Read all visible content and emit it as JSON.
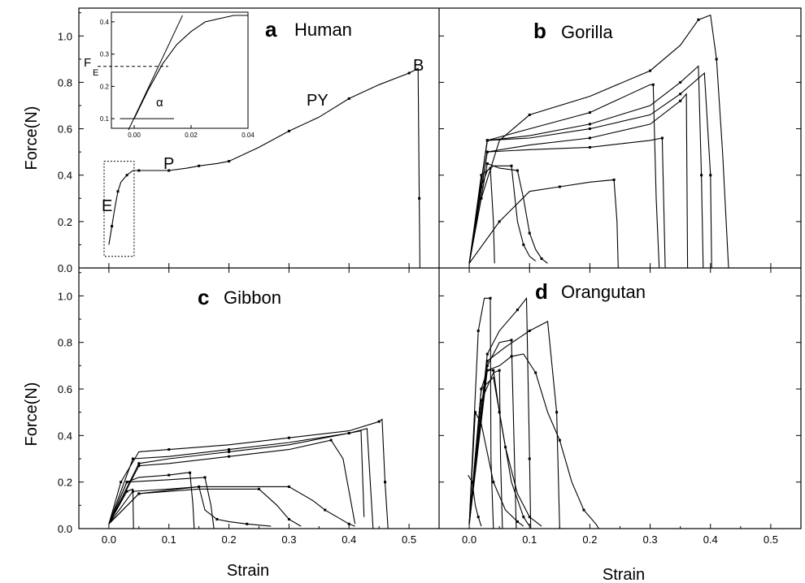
{
  "figure": {
    "ylabel": "Force(N)",
    "xlabel": "Strain",
    "x_ticks": [
      "0.0",
      "0.1",
      "0.2",
      "0.3",
      "0.4",
      "0.5"
    ],
    "y_ticks": [
      "0.0",
      "0.2",
      "0.4",
      "0.6",
      "0.8",
      "1.0"
    ]
  },
  "chart_data": [
    {
      "type": "line",
      "panel": "a",
      "title": "Human",
      "xlabel": "",
      "ylabel": "Force(N)",
      "xlim": [
        -0.05,
        0.55
      ],
      "ylim": [
        0,
        1.12
      ],
      "annotations": [
        "E",
        "P",
        "PY",
        "B"
      ],
      "series": [
        {
          "x": [
            0.0,
            0.005,
            0.01,
            0.015,
            0.02,
            0.03,
            0.04,
            0.05,
            0.08,
            0.1,
            0.13,
            0.15,
            0.18,
            0.2,
            0.25,
            0.3,
            0.35,
            0.4,
            0.45,
            0.5,
            0.515,
            0.517,
            0.518
          ],
          "y": [
            0.1,
            0.18,
            0.26,
            0.33,
            0.37,
            0.4,
            0.42,
            0.42,
            0.42,
            0.42,
            0.43,
            0.44,
            0.45,
            0.46,
            0.52,
            0.59,
            0.65,
            0.73,
            0.79,
            0.84,
            0.86,
            0.3,
            0.0
          ]
        }
      ],
      "inset": {
        "x_ticks": [
          "0.00",
          "0.02",
          "0.04"
        ],
        "y_ticks": [
          "0.1",
          "0.2",
          "0.3",
          "0.4"
        ],
        "annotations": [
          "F",
          "E",
          "α"
        ],
        "xlim": [
          -0.008,
          0.04
        ],
        "ylim": [
          0.07,
          0.43
        ],
        "x": [
          0.0,
          0.005,
          0.01,
          0.015,
          0.02,
          0.025,
          0.03,
          0.035,
          0.04
        ],
        "y": [
          0.1,
          0.19,
          0.27,
          0.33,
          0.37,
          0.4,
          0.41,
          0.42,
          0.42
        ]
      }
    },
    {
      "type": "line",
      "panel": "b",
      "title": "Gorilla",
      "xlabel": "",
      "ylabel": "",
      "xlim": [
        -0.05,
        0.55
      ],
      "ylim": [
        0,
        1.12
      ],
      "series": [
        {
          "x": [
            0.0,
            0.02,
            0.05,
            0.1,
            0.2,
            0.3,
            0.35,
            0.38,
            0.4,
            0.41,
            0.42,
            0.43
          ],
          "y": [
            0.02,
            0.3,
            0.55,
            0.66,
            0.74,
            0.85,
            0.96,
            1.07,
            1.09,
            0.9,
            0.5,
            0.0
          ]
        },
        {
          "x": [
            0.0,
            0.03,
            0.1,
            0.2,
            0.3,
            0.305,
            0.31,
            0.315
          ],
          "y": [
            0.02,
            0.55,
            0.6,
            0.67,
            0.79,
            0.79,
            0.3,
            0.0
          ]
        },
        {
          "x": [
            0.0,
            0.03,
            0.1,
            0.2,
            0.3,
            0.35,
            0.38,
            0.385,
            0.388
          ],
          "y": [
            0.02,
            0.55,
            0.57,
            0.62,
            0.7,
            0.8,
            0.87,
            0.4,
            0.0
          ]
        },
        {
          "x": [
            0.0,
            0.03,
            0.1,
            0.2,
            0.3,
            0.35,
            0.39,
            0.4,
            0.402
          ],
          "y": [
            0.02,
            0.55,
            0.56,
            0.6,
            0.66,
            0.75,
            0.84,
            0.4,
            0.0
          ]
        },
        {
          "x": [
            0.0,
            0.03,
            0.1,
            0.2,
            0.3,
            0.35,
            0.36,
            0.362
          ],
          "y": [
            0.02,
            0.5,
            0.53,
            0.56,
            0.62,
            0.72,
            0.75,
            0.0
          ]
        },
        {
          "x": [
            0.0,
            0.03,
            0.1,
            0.2,
            0.3,
            0.32,
            0.325
          ],
          "y": [
            0.02,
            0.5,
            0.51,
            0.52,
            0.55,
            0.56,
            0.0
          ]
        },
        {
          "x": [
            0.0,
            0.03,
            0.05,
            0.08,
            0.09,
            0.1,
            0.11,
            0.12,
            0.13
          ],
          "y": [
            0.02,
            0.45,
            0.43,
            0.42,
            0.3,
            0.15,
            0.08,
            0.04,
            0.02
          ]
        },
        {
          "x": [
            0.0,
            0.02,
            0.04,
            0.07,
            0.08,
            0.09,
            0.1,
            0.11
          ],
          "y": [
            0.02,
            0.4,
            0.44,
            0.44,
            0.2,
            0.1,
            0.05,
            0.03
          ]
        },
        {
          "x": [
            0.0,
            0.02,
            0.03,
            0.035,
            0.04,
            0.042
          ],
          "y": [
            0.02,
            0.35,
            0.42,
            0.43,
            0.2,
            0.02
          ]
        },
        {
          "x": [
            0.0,
            0.05,
            0.1,
            0.15,
            0.2,
            0.24,
            0.245,
            0.247
          ],
          "y": [
            0.02,
            0.2,
            0.33,
            0.35,
            0.37,
            0.38,
            0.2,
            0.0
          ]
        }
      ]
    },
    {
      "type": "line",
      "panel": "c",
      "title": "Gibbon",
      "xlabel": "Strain",
      "ylabel": "Force(N)",
      "xlim": [
        -0.05,
        0.55
      ],
      "ylim": [
        0,
        1.12
      ],
      "series": [
        {
          "x": [
            0.0,
            0.02,
            0.05,
            0.1,
            0.2,
            0.3,
            0.4,
            0.45,
            0.455,
            0.46,
            0.465
          ],
          "y": [
            0.02,
            0.2,
            0.33,
            0.34,
            0.36,
            0.39,
            0.42,
            0.46,
            0.47,
            0.2,
            0.0
          ]
        },
        {
          "x": [
            0.0,
            0.04,
            0.1,
            0.2,
            0.3,
            0.4,
            0.43,
            0.44
          ],
          "y": [
            0.02,
            0.3,
            0.31,
            0.34,
            0.37,
            0.41,
            0.43,
            0.0
          ]
        },
        {
          "x": [
            0.0,
            0.05,
            0.1,
            0.2,
            0.3,
            0.4,
            0.42,
            0.425
          ],
          "y": [
            0.02,
            0.28,
            0.3,
            0.33,
            0.36,
            0.41,
            0.42,
            0.05
          ]
        },
        {
          "x": [
            0.0,
            0.05,
            0.1,
            0.2,
            0.3,
            0.37,
            0.39,
            0.41
          ],
          "y": [
            0.02,
            0.27,
            0.28,
            0.31,
            0.34,
            0.38,
            0.3,
            0.02
          ]
        },
        {
          "x": [
            0.0,
            0.03,
            0.05,
            0.1,
            0.13,
            0.135,
            0.14,
            0.142
          ],
          "y": [
            0.02,
            0.2,
            0.22,
            0.23,
            0.24,
            0.24,
            0.1,
            0.0
          ]
        },
        {
          "x": [
            0.0,
            0.03,
            0.1,
            0.16,
            0.17,
            0.175
          ],
          "y": [
            0.02,
            0.2,
            0.21,
            0.22,
            0.1,
            0.0
          ]
        },
        {
          "x": [
            0.0,
            0.04,
            0.1,
            0.15,
            0.16,
            0.18,
            0.2,
            0.23,
            0.25,
            0.27
          ],
          "y": [
            0.02,
            0.16,
            0.17,
            0.18,
            0.08,
            0.04,
            0.03,
            0.02,
            0.015,
            0.01
          ]
        },
        {
          "x": [
            0.0,
            0.05,
            0.15,
            0.25,
            0.28,
            0.3,
            0.32
          ],
          "y": [
            0.02,
            0.15,
            0.17,
            0.17,
            0.1,
            0.04,
            0.01
          ]
        },
        {
          "x": [
            0.0,
            0.05,
            0.15,
            0.3,
            0.34,
            0.36,
            0.38,
            0.4,
            0.41
          ],
          "y": [
            0.02,
            0.15,
            0.18,
            0.18,
            0.12,
            0.08,
            0.05,
            0.02,
            0.01
          ]
        },
        {
          "x": [
            0.0,
            0.03,
            0.04,
            0.041
          ],
          "y": [
            0.02,
            0.16,
            0.17,
            0.0
          ]
        }
      ]
    },
    {
      "type": "line",
      "panel": "d",
      "title": "Orangutan",
      "xlabel": "Strain",
      "ylabel": "",
      "xlim": [
        -0.05,
        0.55
      ],
      "ylim": [
        0,
        1.12
      ],
      "series": [
        {
          "x": [
            0.0,
            0.015,
            0.025,
            0.035,
            0.036,
            0.04
          ],
          "y": [
            0.02,
            0.85,
            0.99,
            0.99,
            0.3,
            0.0
          ]
        },
        {
          "x": [
            0.0,
            0.03,
            0.05,
            0.08,
            0.095,
            0.1,
            0.102
          ],
          "y": [
            0.02,
            0.75,
            0.85,
            0.94,
            0.99,
            0.3,
            0.0
          ]
        },
        {
          "x": [
            0.0,
            0.03,
            0.06,
            0.1,
            0.13,
            0.145,
            0.15
          ],
          "y": [
            0.02,
            0.72,
            0.78,
            0.85,
            0.89,
            0.5,
            0.0
          ]
        },
        {
          "x": [
            0.0,
            0.03,
            0.05,
            0.07,
            0.075,
            0.078
          ],
          "y": [
            0.02,
            0.7,
            0.8,
            0.81,
            0.3,
            0.0
          ]
        },
        {
          "x": [
            0.0,
            0.03,
            0.05,
            0.07,
            0.09,
            0.11,
            0.13,
            0.15,
            0.17,
            0.19,
            0.21,
            0.215
          ],
          "y": [
            0.02,
            0.68,
            0.7,
            0.74,
            0.75,
            0.67,
            0.5,
            0.38,
            0.2,
            0.08,
            0.02,
            0.0
          ]
        },
        {
          "x": [
            0.0,
            0.02,
            0.03,
            0.04,
            0.05,
            0.06,
            0.08,
            0.1,
            0.12
          ],
          "y": [
            0.02,
            0.6,
            0.68,
            0.68,
            0.5,
            0.35,
            0.15,
            0.05,
            0.01
          ]
        },
        {
          "x": [
            0.0,
            0.02,
            0.04,
            0.05,
            0.052,
            0.055
          ],
          "y": [
            0.02,
            0.55,
            0.67,
            0.68,
            0.3,
            0.0
          ]
        },
        {
          "x": [
            0.0,
            0.02,
            0.04,
            0.05,
            0.07,
            0.09,
            0.1
          ],
          "y": [
            0.02,
            0.6,
            0.65,
            0.5,
            0.2,
            0.05,
            0.01
          ]
        },
        {
          "x": [
            0.0,
            0.01,
            0.02,
            0.04,
            0.06,
            0.08,
            0.09
          ],
          "y": [
            0.02,
            0.5,
            0.45,
            0.2,
            0.08,
            0.03,
            0.01
          ]
        },
        {
          "x": [
            -0.002,
            0.005,
            0.01,
            0.015,
            0.02
          ],
          "y": [
            0.23,
            0.2,
            0.1,
            0.05,
            0.01
          ]
        }
      ]
    }
  ]
}
